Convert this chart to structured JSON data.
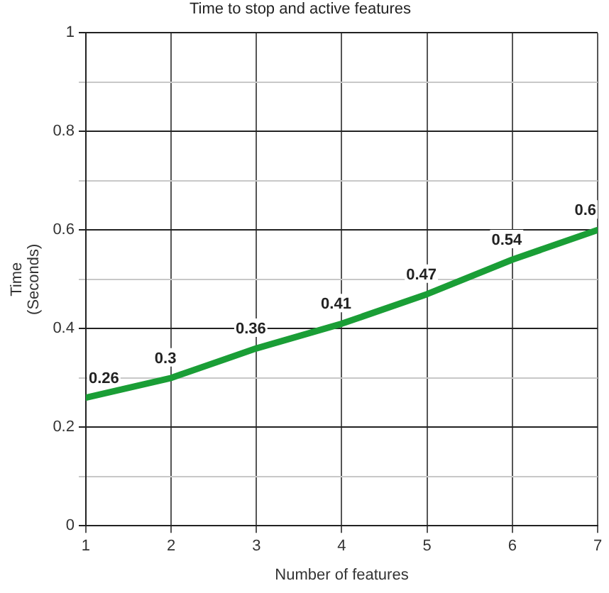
{
  "chart_data": {
    "type": "line",
    "title": "Time to stop and active features",
    "xlabel": "Number of features",
    "ylabel": "Time\n(Seconds)",
    "x": [
      1,
      2,
      3,
      4,
      5,
      6,
      7
    ],
    "series": [
      {
        "color": "#1a9e36",
        "values": [
          0.26,
          0.3,
          0.36,
          0.41,
          0.47,
          0.54,
          0.6
        ]
      }
    ],
    "xlim": [
      1,
      7
    ],
    "xticks": [
      1,
      2,
      3,
      4,
      5,
      6,
      7
    ],
    "ylim": [
      0,
      1
    ],
    "yticks": [
      0,
      {
        "value": 0.1,
        "label": null
      },
      0.2,
      {
        "value": 0.3,
        "label": null
      },
      0.4,
      {
        "value": 0.5,
        "label": null
      },
      0.6,
      {
        "value": 0.7,
        "label": null
      },
      0.8,
      {
        "value": 0.9,
        "label": null
      },
      1
    ],
    "grid": true,
    "legend": false,
    "marker": "none",
    "line_style": "solid",
    "data_labels": true
  }
}
